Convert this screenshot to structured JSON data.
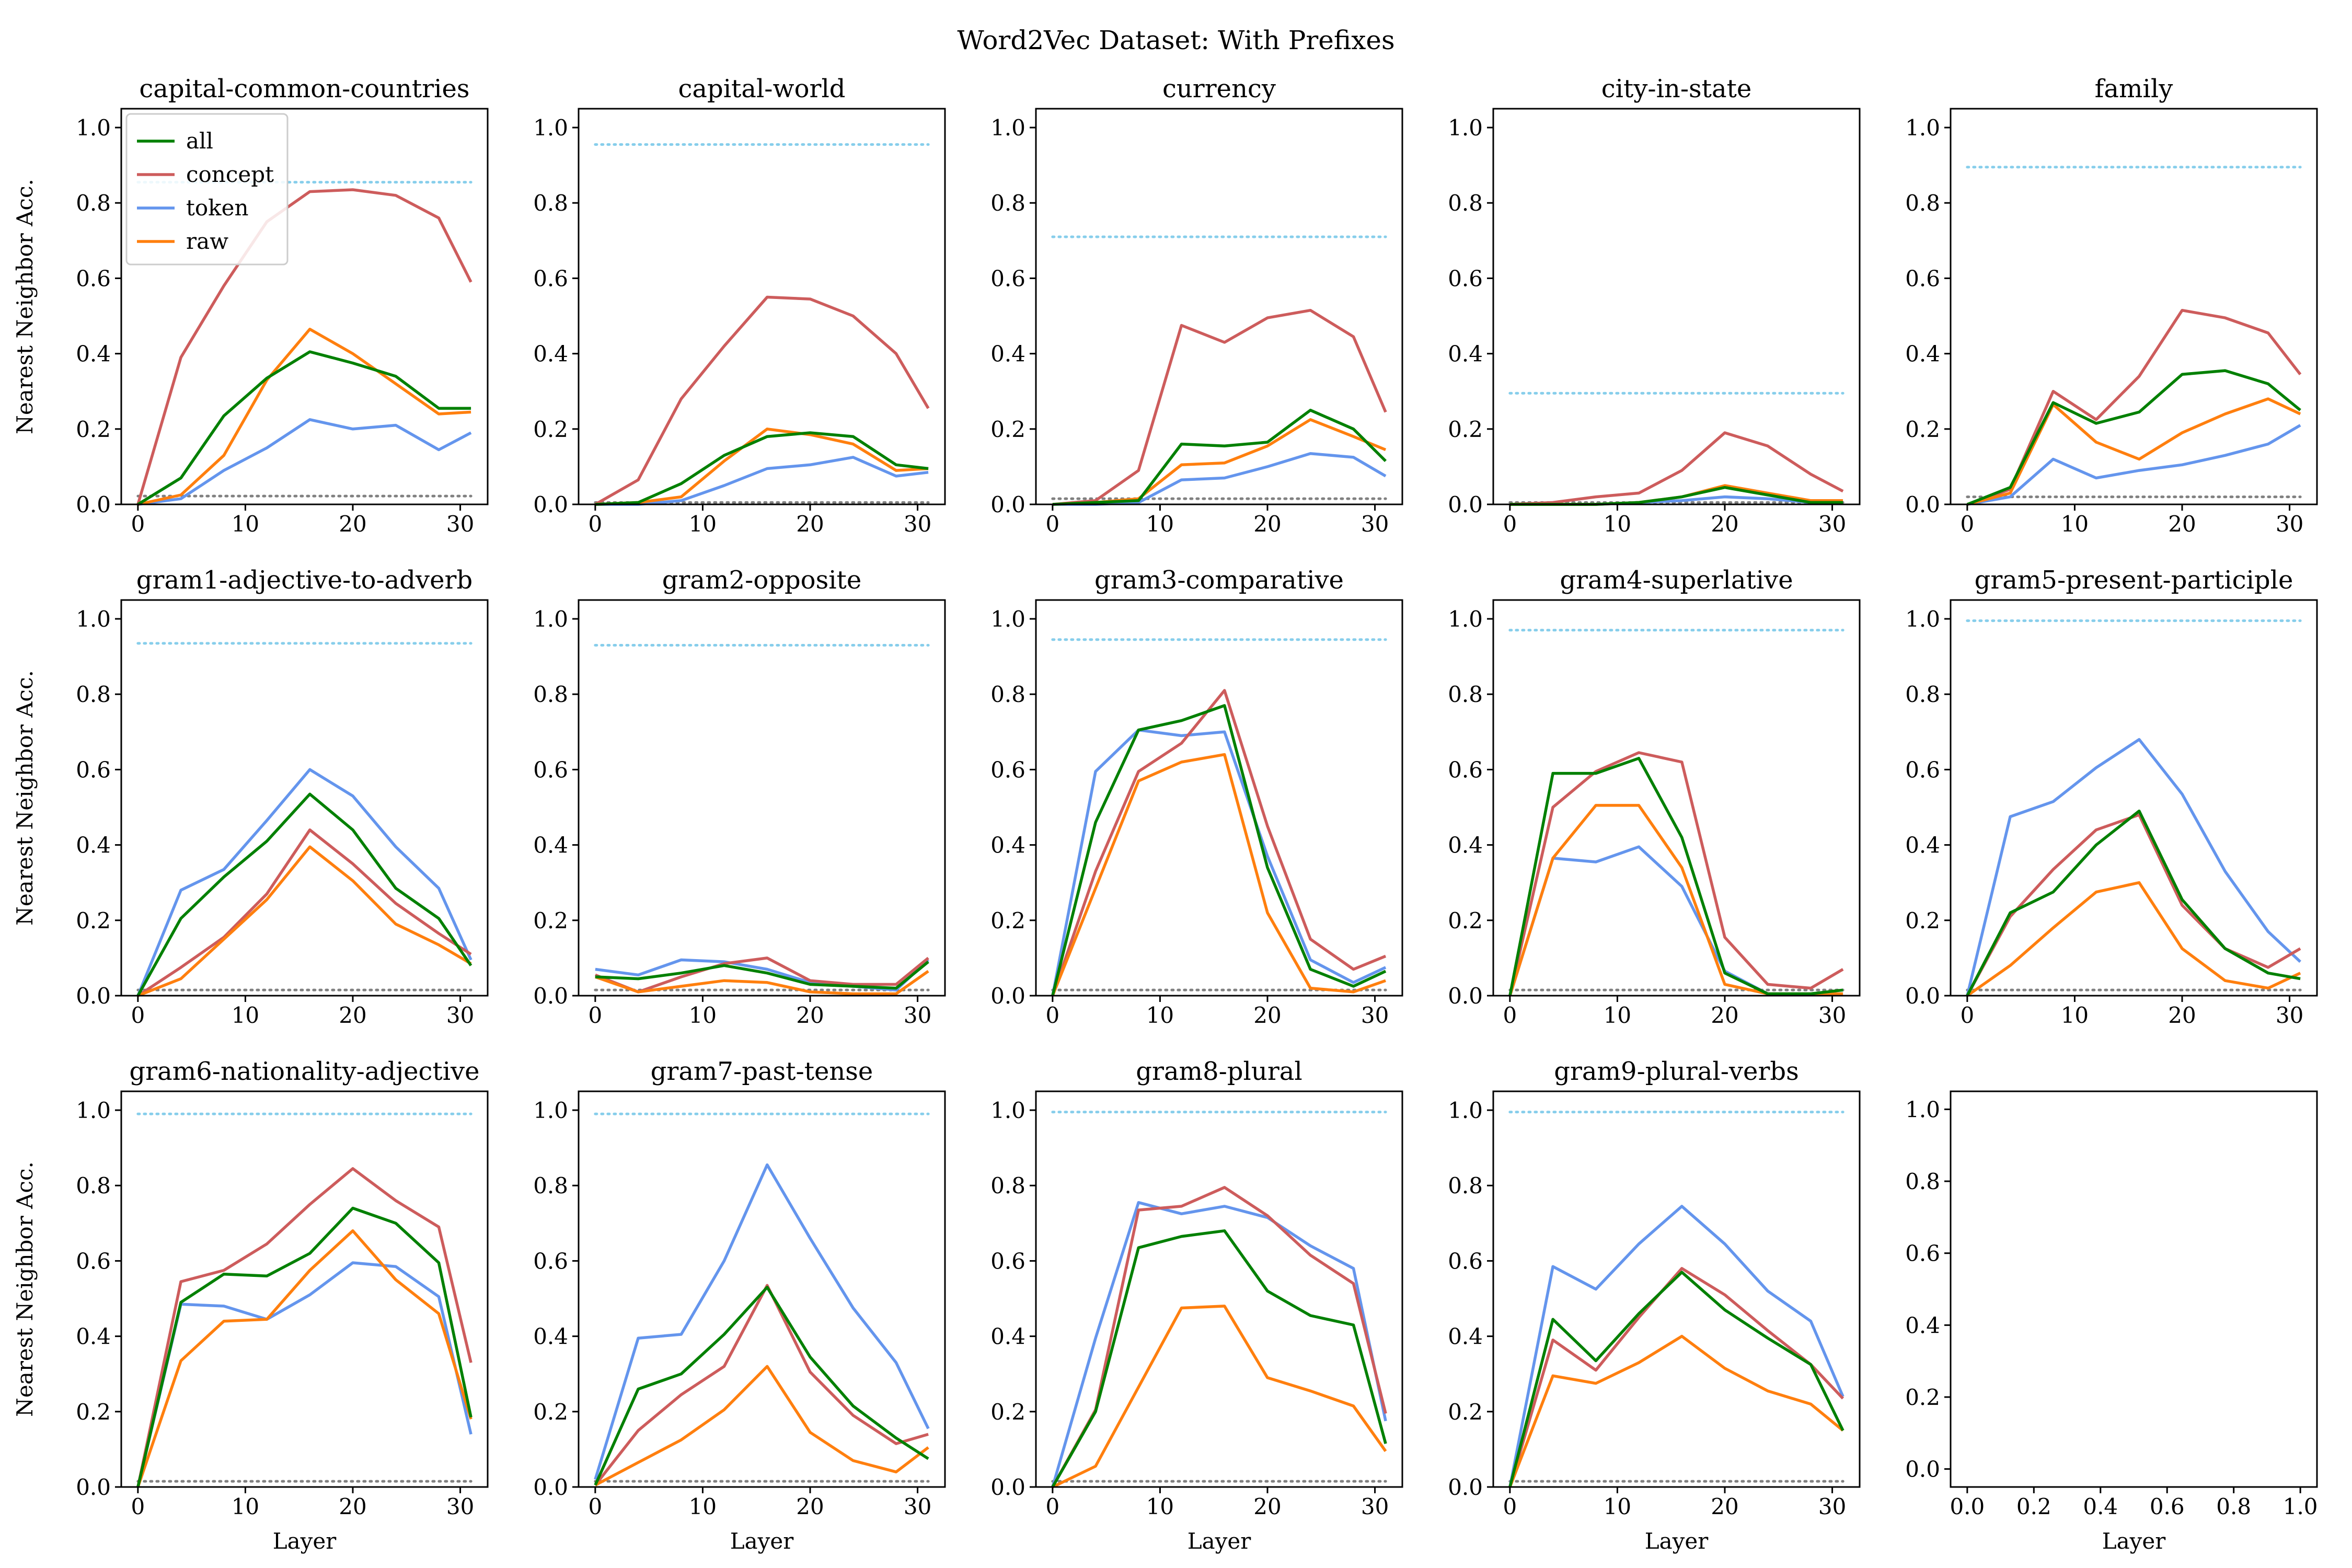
{
  "chart_data": {
    "type": "line",
    "title": "Word2Vec Dataset: With Prefixes",
    "xlabel": "Layer",
    "ylabel": "Nearest Neighbor Acc.",
    "x": [
      0,
      4,
      8,
      12,
      16,
      20,
      24,
      28,
      31
    ],
    "xlim": [
      -1.55,
      32.55
    ],
    "ylim": [
      0,
      1.05
    ],
    "xticks": [
      "0",
      "10",
      "20",
      "30"
    ],
    "yticks": [
      "0.0",
      "0.2",
      "0.4",
      "0.6",
      "0.8",
      "1.0"
    ],
    "grid": false,
    "legend": {
      "location": "upper-left",
      "panel": 0,
      "entries": [
        {
          "name": "all",
          "color": "#008000"
        },
        {
          "name": "concept",
          "color": "#cd5c5c"
        },
        {
          "name": "token",
          "color": "#6495ed"
        },
        {
          "name": "raw",
          "color": "#ff7f0e"
        }
      ]
    },
    "reference_lines": {
      "upper_color": "#87ceeb",
      "lower_color": "#808080"
    },
    "panels": [
      {
        "title": "capital-common-countries",
        "upper": 0.855,
        "lower": 0.022,
        "series": {
          "all": [
            0,
            0.07,
            0.235,
            0.335,
            0.405,
            0.375,
            0.34,
            0.255,
            0.255
          ],
          "concept": [
            0,
            0.39,
            0.58,
            0.75,
            0.83,
            0.835,
            0.82,
            0.76,
            0.59
          ],
          "token": [
            0,
            0.015,
            0.09,
            0.15,
            0.225,
            0.2,
            0.21,
            0.145,
            0.19
          ],
          "raw": [
            0,
            0.025,
            0.13,
            0.33,
            0.465,
            0.4,
            0.32,
            0.24,
            0.245
          ]
        }
      },
      {
        "title": "capital-world",
        "upper": 0.955,
        "lower": 0.005,
        "series": {
          "all": [
            0,
            0.005,
            0.055,
            0.13,
            0.18,
            0.19,
            0.18,
            0.105,
            0.095
          ],
          "concept": [
            0,
            0.065,
            0.28,
            0.42,
            0.55,
            0.545,
            0.5,
            0.4,
            0.255
          ],
          "token": [
            0,
            0.0,
            0.01,
            0.05,
            0.095,
            0.105,
            0.125,
            0.075,
            0.085
          ],
          "raw": [
            0,
            0.005,
            0.02,
            0.115,
            0.2,
            0.185,
            0.16,
            0.09,
            0.095
          ]
        }
      },
      {
        "title": "currency",
        "upper": 0.71,
        "lower": 0.015,
        "series": {
          "all": [
            0,
            0.005,
            0.01,
            0.16,
            0.155,
            0.165,
            0.25,
            0.2,
            0.115
          ],
          "concept": [
            0,
            0.01,
            0.09,
            0.475,
            0.43,
            0.495,
            0.515,
            0.445,
            0.245
          ],
          "token": [
            0,
            0.0,
            0.005,
            0.065,
            0.07,
            0.1,
            0.135,
            0.125,
            0.075
          ],
          "raw": [
            0,
            0.005,
            0.015,
            0.105,
            0.11,
            0.155,
            0.225,
            0.18,
            0.145
          ]
        }
      },
      {
        "title": "city-in-state",
        "upper": 0.295,
        "lower": 0.005,
        "series": {
          "all": [
            0,
            0.0,
            0.0,
            0.005,
            0.02,
            0.045,
            0.025,
            0.005,
            0.005
          ],
          "concept": [
            0,
            0.005,
            0.02,
            0.03,
            0.09,
            0.19,
            0.155,
            0.08,
            0.035
          ],
          "token": [
            0,
            0.0,
            0.0,
            0.005,
            0.01,
            0.02,
            0.015,
            0.005,
            0.005
          ],
          "raw": [
            0,
            0.0,
            0.0,
            0.005,
            0.02,
            0.05,
            0.03,
            0.01,
            0.01
          ]
        }
      },
      {
        "title": "family",
        "upper": 0.895,
        "lower": 0.02,
        "series": {
          "all": [
            0,
            0.045,
            0.27,
            0.215,
            0.245,
            0.345,
            0.355,
            0.32,
            0.25
          ],
          "concept": [
            0,
            0.04,
            0.3,
            0.225,
            0.34,
            0.515,
            0.495,
            0.455,
            0.345
          ],
          "token": [
            0,
            0.02,
            0.12,
            0.07,
            0.09,
            0.105,
            0.13,
            0.16,
            0.21
          ],
          "raw": [
            0,
            0.03,
            0.265,
            0.165,
            0.12,
            0.19,
            0.24,
            0.28,
            0.24
          ]
        }
      },
      {
        "title": "gram1-adjective-to-adverb",
        "upper": 0.935,
        "lower": 0.015,
        "series": {
          "all": [
            0,
            0.205,
            0.315,
            0.41,
            0.535,
            0.44,
            0.285,
            0.205,
            0.08
          ],
          "concept": [
            0,
            0.075,
            0.155,
            0.27,
            0.44,
            0.35,
            0.245,
            0.165,
            0.11
          ],
          "token": [
            0,
            0.28,
            0.335,
            0.465,
            0.6,
            0.53,
            0.395,
            0.285,
            0.095
          ],
          "raw": [
            0,
            0.045,
            0.15,
            0.255,
            0.395,
            0.305,
            0.19,
            0.135,
            0.085
          ]
        }
      },
      {
        "title": "gram2-opposite",
        "upper": 0.93,
        "lower": 0.015,
        "series": {
          "all": [
            0.05,
            0.045,
            0.06,
            0.08,
            0.06,
            0.03,
            0.025,
            0.02,
            0.09
          ],
          "concept": [
            0.055,
            0.01,
            0.05,
            0.085,
            0.1,
            0.04,
            0.03,
            0.03,
            0.1
          ],
          "token": [
            0.07,
            0.055,
            0.095,
            0.09,
            0.07,
            0.035,
            0.025,
            0.015,
            0.095
          ],
          "raw": [
            0.05,
            0.01,
            0.025,
            0.04,
            0.035,
            0.01,
            0.005,
            0.005,
            0.065
          ]
        }
      },
      {
        "title": "gram3-comparative",
        "upper": 0.945,
        "lower": 0.015,
        "series": {
          "all": [
            0,
            0.46,
            0.705,
            0.73,
            0.77,
            0.34,
            0.07,
            0.025,
            0.065
          ],
          "concept": [
            0,
            0.33,
            0.595,
            0.67,
            0.81,
            0.45,
            0.15,
            0.07,
            0.105
          ],
          "token": [
            0,
            0.595,
            0.705,
            0.69,
            0.7,
            0.37,
            0.095,
            0.035,
            0.075
          ],
          "raw": [
            0,
            0.285,
            0.57,
            0.62,
            0.64,
            0.22,
            0.02,
            0.01,
            0.04
          ]
        }
      },
      {
        "title": "gram4-superlative",
        "upper": 0.97,
        "lower": 0.015,
        "series": {
          "all": [
            0,
            0.59,
            0.59,
            0.63,
            0.42,
            0.06,
            0.005,
            0.005,
            0.015
          ],
          "concept": [
            0,
            0.5,
            0.595,
            0.645,
            0.62,
            0.155,
            0.03,
            0.02,
            0.07
          ],
          "token": [
            0,
            0.365,
            0.355,
            0.395,
            0.29,
            0.065,
            0.005,
            0.005,
            0.005
          ],
          "raw": [
            0,
            0.365,
            0.505,
            0.505,
            0.34,
            0.03,
            0.005,
            0.005,
            0.005
          ]
        }
      },
      {
        "title": "gram5-present-participle",
        "upper": 0.995,
        "lower": 0.015,
        "series": {
          "all": [
            0,
            0.22,
            0.275,
            0.4,
            0.49,
            0.255,
            0.125,
            0.06,
            0.045
          ],
          "concept": [
            0,
            0.21,
            0.335,
            0.44,
            0.48,
            0.24,
            0.125,
            0.075,
            0.125
          ],
          "token": [
            0,
            0.475,
            0.515,
            0.605,
            0.68,
            0.535,
            0.33,
            0.17,
            0.09
          ],
          "raw": [
            0,
            0.08,
            0.18,
            0.275,
            0.3,
            0.125,
            0.04,
            0.02,
            0.06
          ]
        }
      },
      {
        "title": "gram6-nationality-adjective",
        "upper": 0.99,
        "lower": 0.015,
        "series": {
          "all": [
            0,
            0.49,
            0.565,
            0.56,
            0.62,
            0.74,
            0.7,
            0.595,
            0.185
          ],
          "concept": [
            0,
            0.545,
            0.575,
            0.645,
            0.75,
            0.845,
            0.76,
            0.69,
            0.33
          ],
          "token": [
            0,
            0.485,
            0.48,
            0.445,
            0.51,
            0.595,
            0.585,
            0.505,
            0.14
          ],
          "raw": [
            0,
            0.335,
            0.44,
            0.445,
            0.575,
            0.68,
            0.55,
            0.46,
            0.18
          ]
        }
      },
      {
        "title": "gram7-past-tense",
        "upper": 0.99,
        "lower": 0.015,
        "series": {
          "all": [
            0.005,
            0.26,
            0.3,
            0.405,
            0.53,
            0.345,
            0.215,
            0.13,
            0.075
          ],
          "concept": [
            0.005,
            0.15,
            0.245,
            0.32,
            0.535,
            0.305,
            0.19,
            0.115,
            0.14
          ],
          "token": [
            0.02,
            0.395,
            0.405,
            0.6,
            0.855,
            0.66,
            0.475,
            0.33,
            0.155
          ],
          "raw": [
            0.005,
            0.065,
            0.125,
            0.205,
            0.32,
            0.145,
            0.07,
            0.04,
            0.105
          ]
        }
      },
      {
        "title": "gram8-plural",
        "upper": 0.995,
        "lower": 0.015,
        "series": {
          "all": [
            0,
            0.2,
            0.635,
            0.665,
            0.68,
            0.52,
            0.455,
            0.43,
            0.115
          ],
          "concept": [
            0,
            0.205,
            0.735,
            0.745,
            0.795,
            0.72,
            0.615,
            0.54,
            0.195
          ],
          "token": [
            0,
            0.395,
            0.755,
            0.725,
            0.745,
            0.715,
            0.64,
            0.58,
            0.175
          ],
          "raw": [
            0,
            0.055,
            0.265,
            0.475,
            0.48,
            0.29,
            0.255,
            0.215,
            0.095
          ]
        }
      },
      {
        "title": "gram9-plural-verbs",
        "upper": 0.995,
        "lower": 0.015,
        "series": {
          "all": [
            0,
            0.445,
            0.335,
            0.46,
            0.57,
            0.47,
            0.395,
            0.325,
            0.15
          ],
          "concept": [
            0,
            0.39,
            0.31,
            0.45,
            0.58,
            0.51,
            0.415,
            0.325,
            0.235
          ],
          "token": [
            0,
            0.585,
            0.525,
            0.645,
            0.745,
            0.645,
            0.52,
            0.44,
            0.24
          ],
          "raw": [
            0,
            0.295,
            0.275,
            0.33,
            0.4,
            0.315,
            0.255,
            0.22,
            0.15
          ]
        }
      }
    ],
    "empty_panel": {
      "xticks": [
        "0.0",
        "0.2",
        "0.4",
        "0.6",
        "0.8",
        "1.0"
      ],
      "yticks": [
        "0.0",
        "0.2",
        "0.4",
        "0.6",
        "0.8",
        "1.0"
      ]
    }
  }
}
